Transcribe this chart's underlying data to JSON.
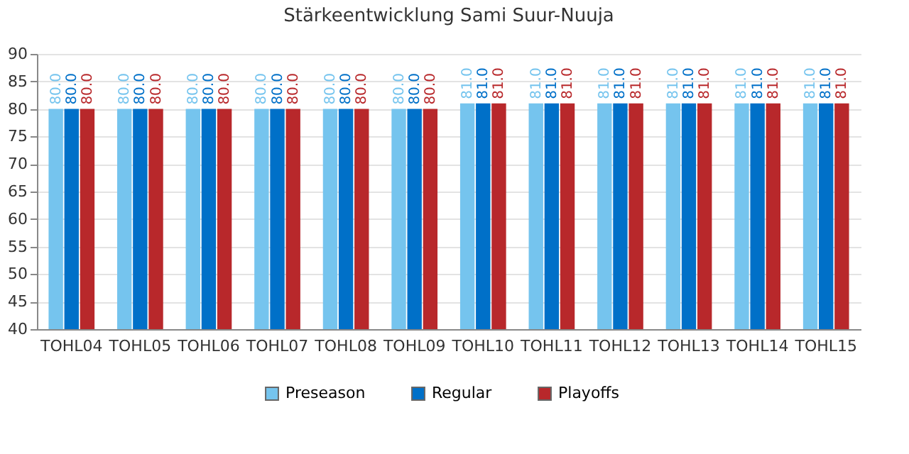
{
  "chart_data": {
    "type": "bar",
    "title": "Stärkeentwicklung Sami Suur-Nuuja",
    "categories": [
      "TOHL04",
      "TOHL05",
      "TOHL06",
      "TOHL07",
      "TOHL08",
      "TOHL09",
      "TOHL10",
      "TOHL11",
      "TOHL12",
      "TOHL13",
      "TOHL14",
      "TOHL15"
    ],
    "series": [
      {
        "name": "Preseason",
        "color": "#75c4ee",
        "values": [
          80,
          80,
          80,
          80,
          80,
          80,
          81,
          81,
          81,
          81,
          81,
          81
        ],
        "value_labels": [
          "80.0",
          "80.0",
          "80.0",
          "80.0",
          "80.0",
          "80.0",
          "81.0",
          "81.0",
          "81.0",
          "81.0",
          "81.0",
          "81.0"
        ]
      },
      {
        "name": "Regular",
        "color": "#0070c8",
        "values": [
          80,
          80,
          80,
          80,
          80,
          80,
          81,
          81,
          81,
          81,
          81,
          81
        ],
        "value_labels": [
          "80.0",
          "80.0",
          "80.0",
          "80.0",
          "80.0",
          "80.0",
          "81.0",
          "81.0",
          "81.0",
          "81.0",
          "81.0",
          "81.0"
        ]
      },
      {
        "name": "Playoffs",
        "color": "#b8282b",
        "values": [
          80,
          80,
          80,
          80,
          80,
          80,
          81,
          81,
          81,
          81,
          81,
          81
        ],
        "value_labels": [
          "80.0",
          "80.0",
          "80.0",
          "80.0",
          "80.0",
          "80.0",
          "81.0",
          "81.0",
          "81.0",
          "81.0",
          "81.0",
          "81.0"
        ]
      }
    ],
    "ylim": [
      40,
      90
    ],
    "yticks": [
      40,
      45,
      50,
      55,
      60,
      65,
      70,
      75,
      80,
      85,
      90
    ],
    "grid": "y",
    "legend": "bottom"
  }
}
